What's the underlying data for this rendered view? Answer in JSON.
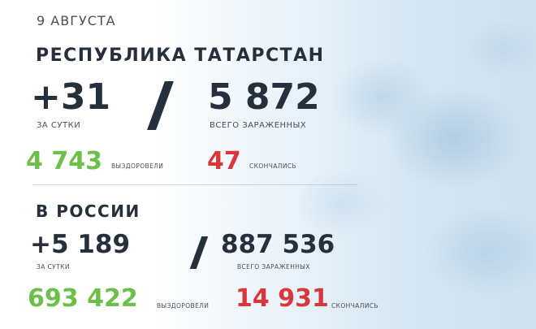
{
  "date": "9 АВГУСТА",
  "tatarstan": {
    "title": "РЕСПУБЛИКА ТАТАРСТАН",
    "daily": "+31",
    "daily_label": "ЗА СУТКИ",
    "total": "5 872",
    "total_label": "ВСЕГО ЗАРАЖЕННЫХ",
    "recovered": "4 743",
    "recovered_label": "ВЫЗДОРОВЕЛИ",
    "deaths": "47",
    "deaths_label": "СКОНЧАЛИСЬ"
  },
  "russia": {
    "title": "В РОССИИ",
    "daily": "+5 189",
    "daily_label": "ЗА СУТКИ",
    "total": "887 536",
    "total_label": "ВСЕГО ЗАРАЖЕННЫХ",
    "recovered": "693 422",
    "recovered_label": "ВЫЗДОРОВЕЛИ",
    "deaths": "14 931",
    "deaths_label": "СКОНЧАЛИСЬ"
  },
  "colors": {
    "text": "#26303d",
    "recovered": "#6cc04a",
    "deaths": "#d8383c"
  }
}
